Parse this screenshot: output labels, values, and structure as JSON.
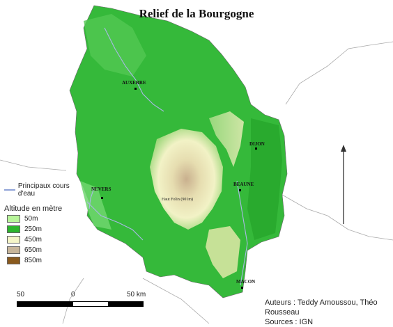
{
  "title": "Relief de la Bourgogne",
  "legend": {
    "river_label": "Principaux cours d'eau",
    "altitude_title": "Altitude en mètre",
    "items": [
      {
        "label": "50m",
        "color": "#b8f59a"
      },
      {
        "label": "250m",
        "color": "#2db52d"
      },
      {
        "label": "450m",
        "color": "#f5f5c8"
      },
      {
        "label": "650m",
        "color": "#c7b59a"
      },
      {
        "label": "850m",
        "color": "#8a5a1e"
      }
    ]
  },
  "cities": {
    "auxerre": "AUXERRE",
    "dijon": "DIJON",
    "nevers": "NEVERS",
    "beaune": "BEAUNE",
    "macon": "MACON"
  },
  "summit": "Haut Folin (901m)",
  "scale": {
    "left": "50",
    "mid": "0",
    "right": "50 km"
  },
  "credits": {
    "authors": "Auteurs : Teddy Amoussou, Théo Rousseau",
    "sources": "Sources : IGN"
  },
  "north_arrow": "arrow-up-icon"
}
